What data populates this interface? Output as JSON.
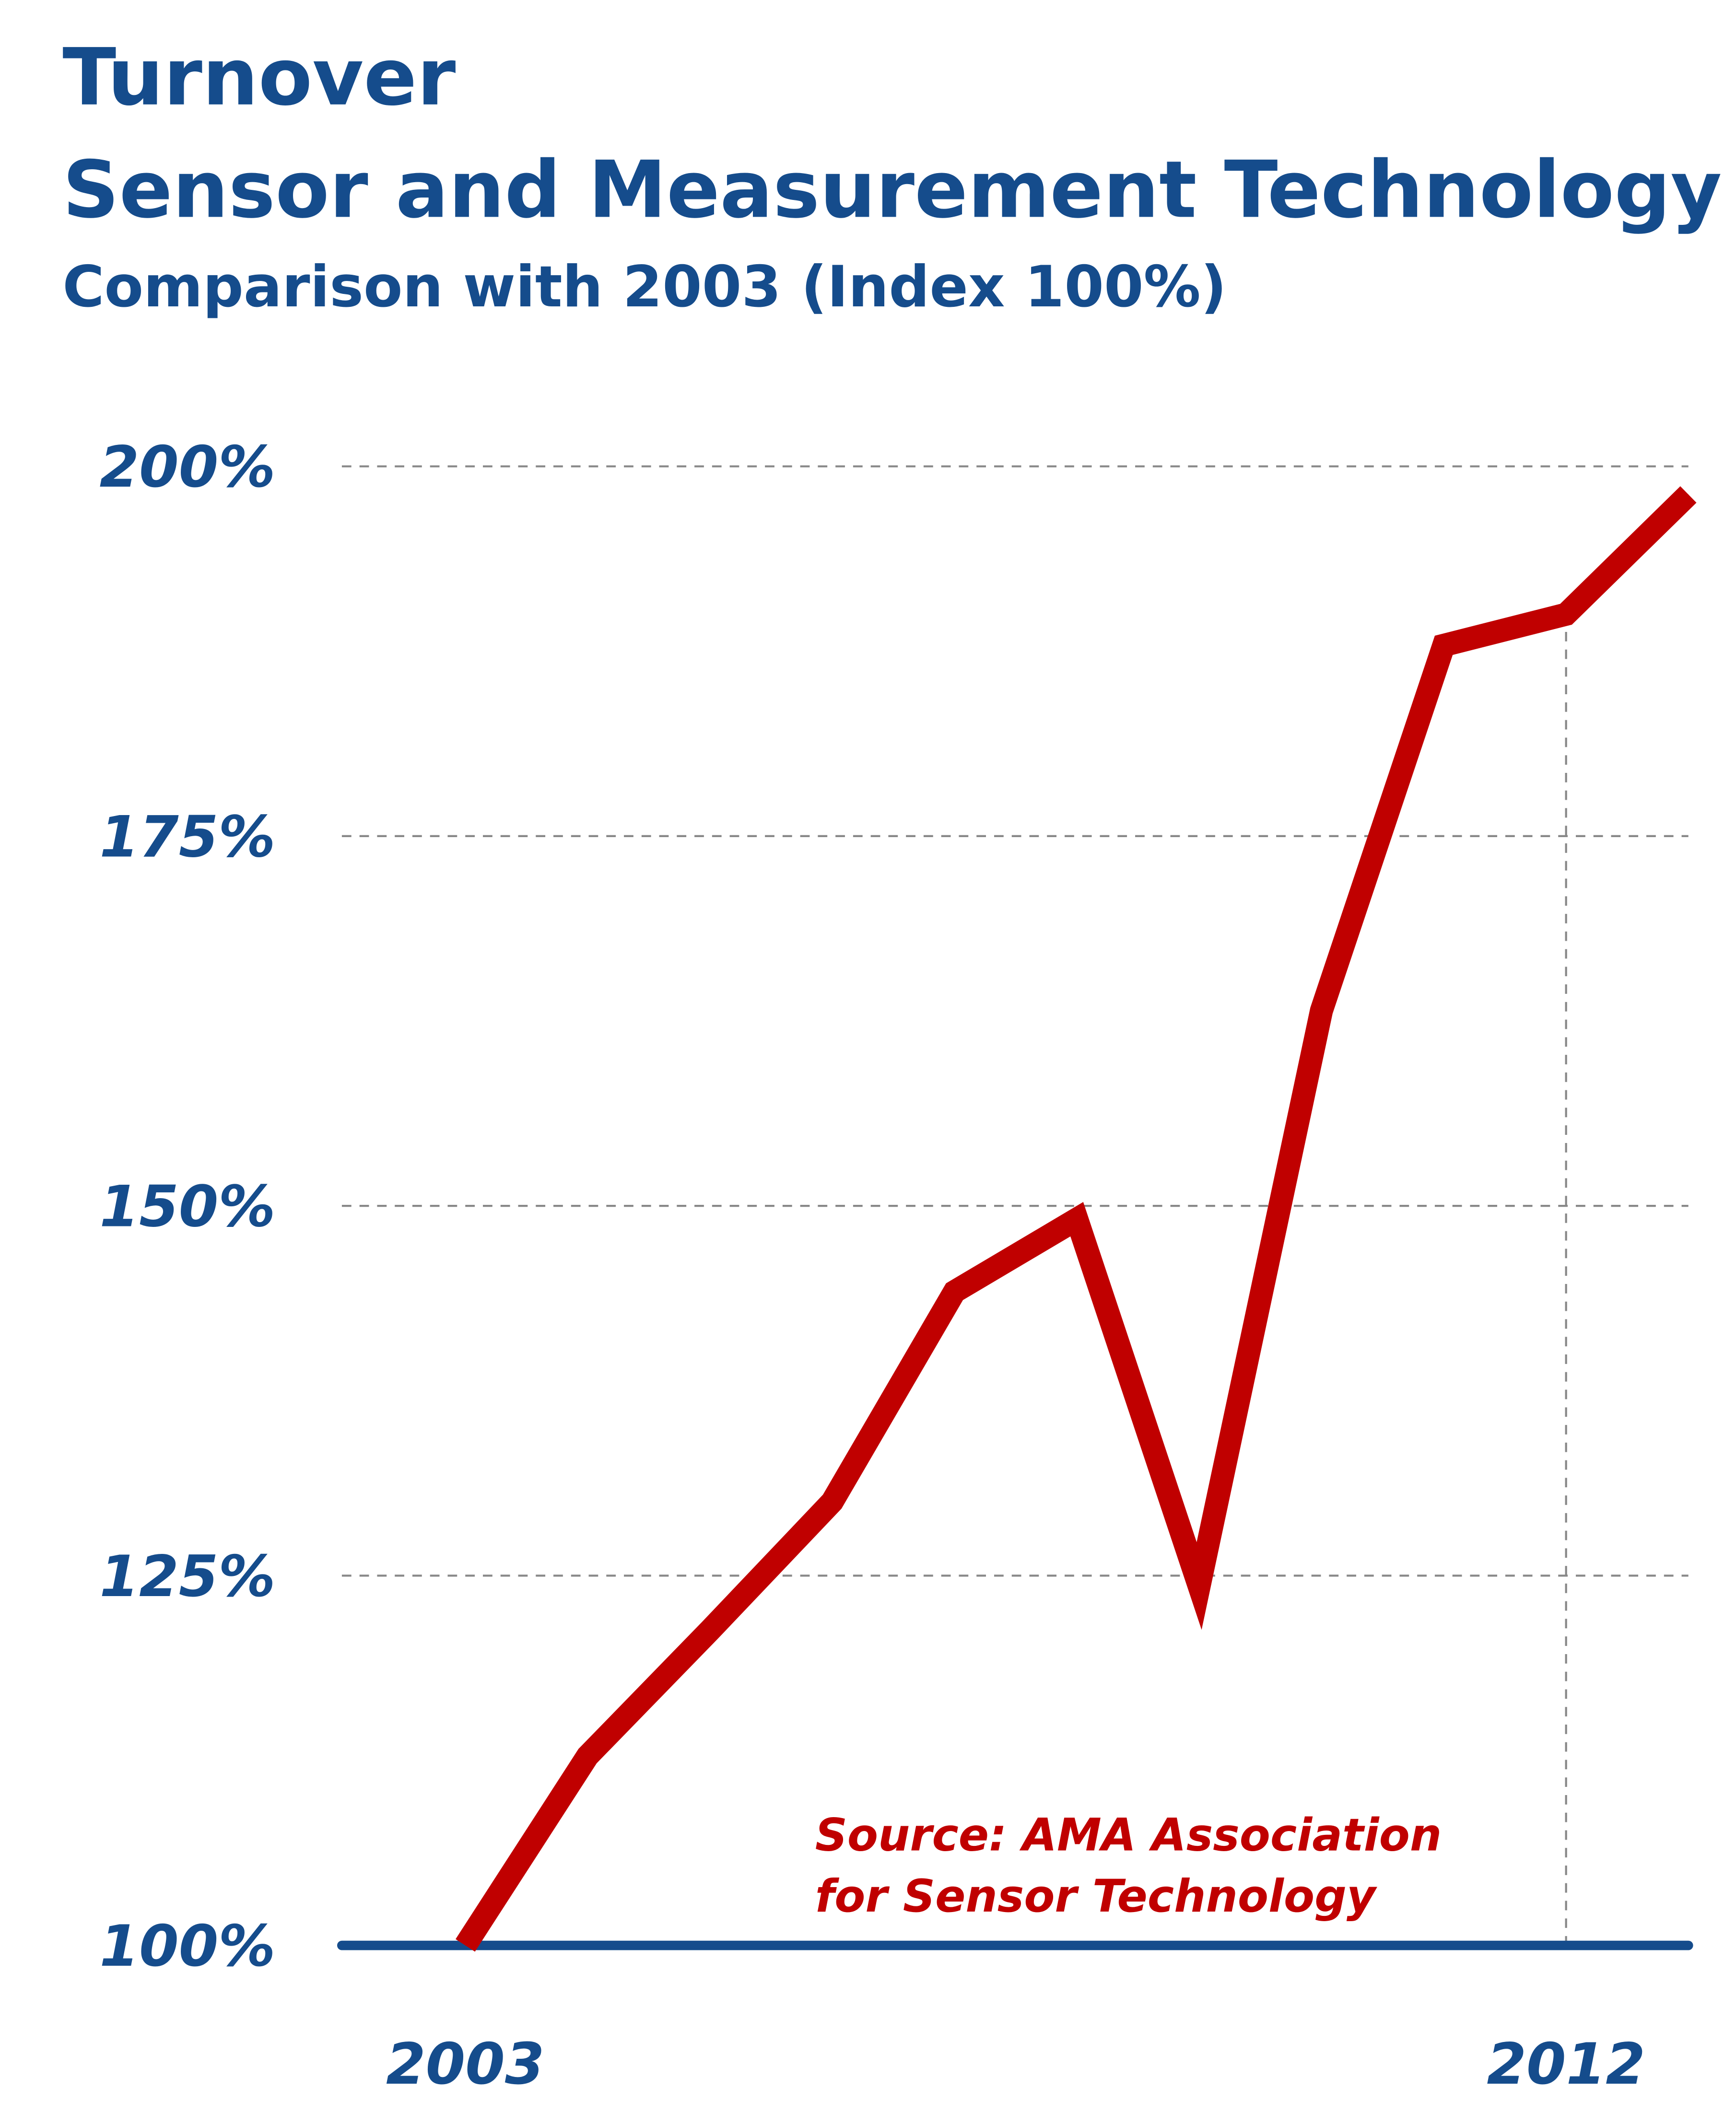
{
  "chart_data": {
    "type": "line",
    "title": "Turnover",
    "title_line2": "Sensor and Measurement Technology",
    "subtitle": "Comparison with 2003 (Index 100%)",
    "x": [
      2003,
      2004,
      2005,
      2006,
      2007,
      2008,
      2009,
      2010,
      2011,
      2012,
      2013
    ],
    "xlim": [
      2002,
      2013
    ],
    "x_tick_labels": [
      "2003",
      "2012"
    ],
    "series": [
      {
        "values": [
          100,
          112.8,
          121.3,
          130.0,
          144.2,
          149.1,
          124.3,
          163.2,
          187.9,
          190.0,
          198.1
        ],
        "color": "#c00000"
      }
    ],
    "ylim": [
      100,
      200
    ],
    "y_ticks": [
      100,
      125,
      150,
      175,
      200
    ],
    "y_tick_labels": [
      "100%",
      "125%",
      "150%",
      "175%",
      "200%"
    ],
    "grid": "horizontal dashed, plus vertical dashed at 2012",
    "annotation": [
      "Source: AMA Association",
      "for Sensor Technology"
    ],
    "colors": {
      "text": "#154c8c",
      "axis": "#154c8c",
      "line": "#c00000",
      "grid": "#888888"
    }
  }
}
